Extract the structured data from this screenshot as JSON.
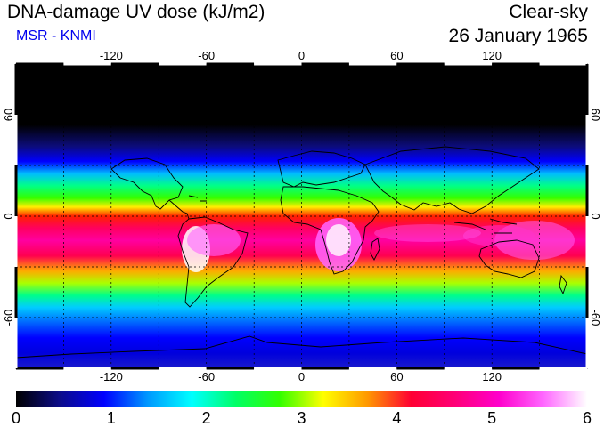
{
  "header": {
    "title": "DNA-damage UV dose (kJ/m2)",
    "source": "MSR - KNMI",
    "sky_condition": "Clear-sky",
    "date": "26 January 1965"
  },
  "map": {
    "projection": "equirectangular",
    "lon_range": [
      -180,
      180
    ],
    "lat_range": [
      -90,
      90
    ],
    "grid_spacing_deg": 30,
    "lon_tick_labels": [
      "-120",
      "-60",
      "0",
      "60",
      "120"
    ],
    "lon_tick_values": [
      -120,
      -60,
      0,
      60,
      120
    ],
    "lat_tick_labels": [
      "60",
      "0",
      "-60"
    ],
    "lat_tick_values": [
      60,
      0,
      -60
    ]
  },
  "colorbar": {
    "min": 0,
    "max": 6,
    "tick_labels": [
      "0",
      "1",
      "2",
      "3",
      "4",
      "5",
      "6"
    ],
    "tick_values": [
      0,
      1,
      2,
      3,
      4,
      5,
      6
    ],
    "colors": [
      "#000000",
      "#0c0c8a",
      "#0000ff",
      "#0099ff",
      "#00ffff",
      "#00ff66",
      "#33ff00",
      "#ffff00",
      "#ff9900",
      "#ff0033",
      "#ff0077",
      "#ff00cc",
      "#ff66ff",
      "#ffffff"
    ]
  }
}
